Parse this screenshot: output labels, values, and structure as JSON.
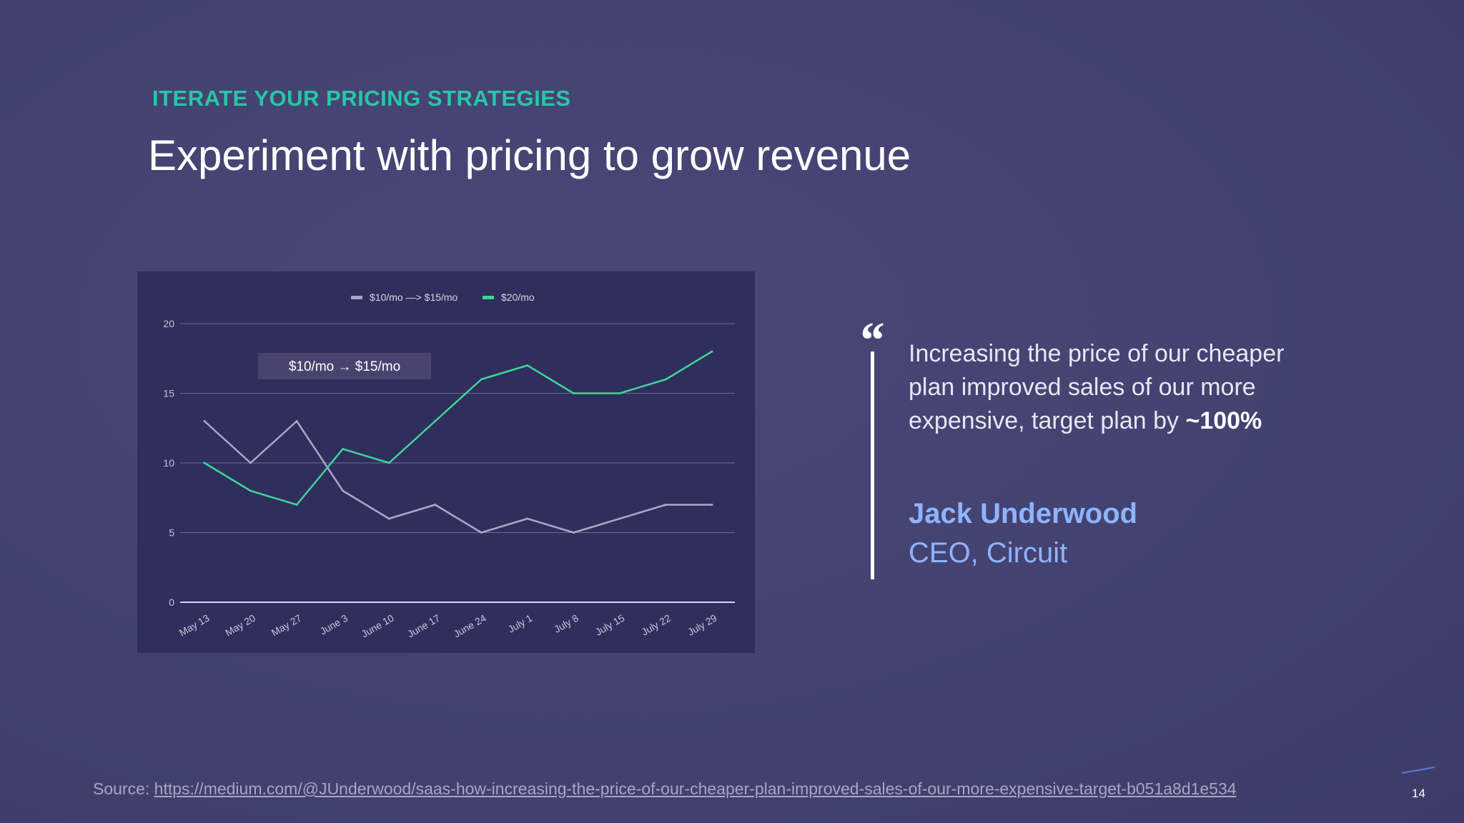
{
  "slide": {
    "eyebrow": "ITERATE YOUR PRICING STRATEGIES",
    "title": "Experiment with pricing to grow revenue",
    "page_number": "14"
  },
  "quote": {
    "mark": "“",
    "text_main": "Increasing the price of our cheaper plan improved sales of our more expensive, target plan by ",
    "text_bold": "~100%",
    "author_name": "Jack Underwood",
    "author_role": "CEO, Circuit"
  },
  "source": {
    "label": "Source: ",
    "url": "https://medium.com/@JUnderwood/saas-how-increasing-the-price-of-our-cheaper-plan-improved-sales-of-our-more-expensive-target-b051a8d1e534"
  },
  "colors": {
    "accent": "#26c7a6",
    "author": "#8fb4ff",
    "series_gray": "#a9a7c8",
    "series_green": "#3dd598"
  },
  "chart_data": {
    "type": "line",
    "title": "",
    "xlabel": "",
    "ylabel": "",
    "categories": [
      "May 13",
      "May 20",
      "May 27",
      "June 3",
      "June 10",
      "June 17",
      "June 24",
      "July 1",
      "July 8",
      "July 15",
      "July 22",
      "July 29"
    ],
    "series": [
      {
        "name": "$10/mo —> $15/mo",
        "color": "#a9a7c8",
        "values": [
          13,
          10,
          13,
          8,
          6,
          7,
          5,
          6,
          5,
          6,
          7,
          7
        ]
      },
      {
        "name": "$20/mo",
        "color": "#3dd598",
        "values": [
          10,
          8,
          7,
          11,
          10,
          13,
          16,
          17,
          15,
          15,
          16,
          18
        ]
      }
    ],
    "ylim": [
      0,
      20
    ],
    "yticks": [
      0,
      5,
      10,
      15,
      20
    ],
    "grid": true,
    "legend_position": "top-center",
    "annotation": "$10/mo → $15/mo"
  }
}
